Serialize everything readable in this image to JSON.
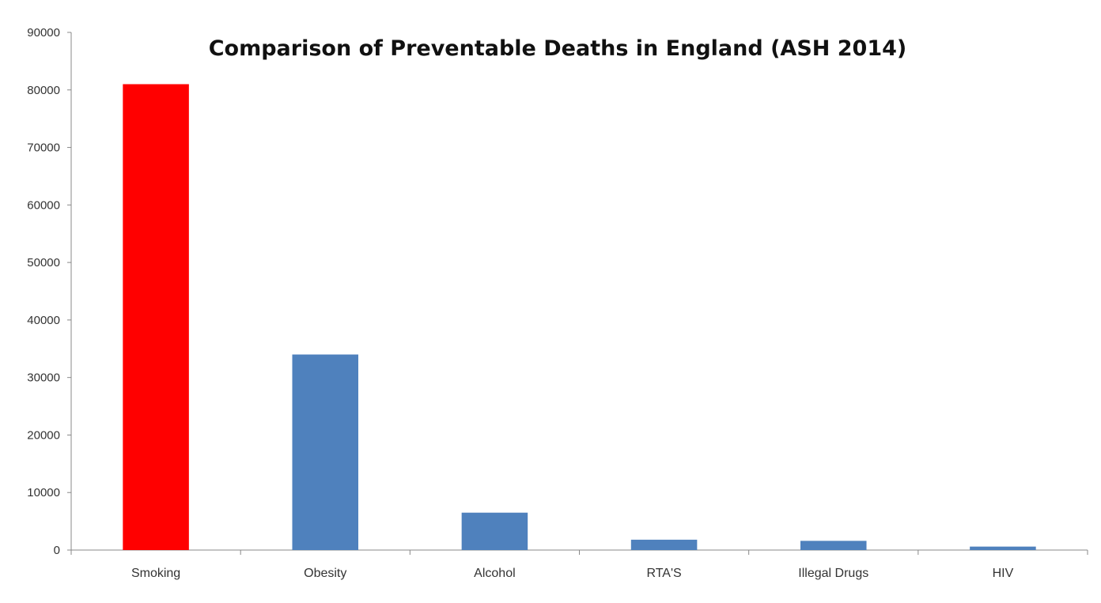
{
  "chart_data": {
    "type": "bar",
    "title": "Comparison of Preventable Deaths in England (ASH 2014)",
    "xlabel": "",
    "ylabel": "",
    "categories": [
      "Smoking",
      "Obesity",
      "Alcohol",
      "RTA'S",
      "Illegal Drugs",
      "HIV"
    ],
    "values": [
      81000,
      34000,
      6500,
      1800,
      1600,
      600
    ],
    "bar_colors": [
      "#ff0000",
      "#4f81bd",
      "#4f81bd",
      "#4f81bd",
      "#4f81bd",
      "#4f81bd"
    ],
    "ylim": [
      0,
      90000
    ],
    "yticks": [
      0,
      10000,
      20000,
      30000,
      40000,
      50000,
      60000,
      70000,
      80000,
      90000
    ],
    "grid": false,
    "legend": "none"
  }
}
